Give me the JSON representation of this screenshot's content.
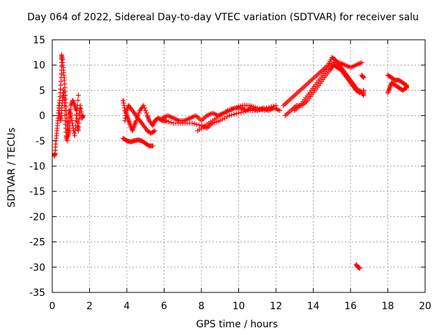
{
  "chart_data": {
    "type": "scatter",
    "title": "Day 064 of 2022, Sidereal Day-to-day VTEC variation (SDTVAR) for receiver salu",
    "xlabel": "GPS time / hours",
    "ylabel": "SDTVAR / TECUs",
    "xlim": [
      0,
      20
    ],
    "ylim": [
      -35,
      15
    ],
    "xticks": [
      0,
      2,
      4,
      6,
      8,
      10,
      12,
      14,
      16,
      18,
      20
    ],
    "yticks": [
      15,
      10,
      5,
      0,
      -5,
      -10,
      -15,
      -20,
      -25,
      -30,
      -35
    ],
    "grid": true,
    "marker": "+",
    "series": [
      {
        "name": "SDTVAR",
        "color": "#ff0000",
        "segments": [
          [
            [
              0.1,
              -8
            ],
            [
              0.15,
              -7.5
            ],
            [
              0.2,
              -5
            ],
            [
              0.25,
              -3
            ],
            [
              0.3,
              -1
            ],
            [
              0.35,
              1
            ],
            [
              0.4,
              3
            ],
            [
              0.45,
              6
            ],
            [
              0.5,
              9
            ],
            [
              0.5,
              12
            ],
            [
              0.55,
              11
            ],
            [
              0.6,
              9
            ],
            [
              0.65,
              7
            ],
            [
              0.7,
              4
            ],
            [
              0.75,
              1
            ],
            [
              0.8,
              -2
            ],
            [
              0.85,
              -4
            ],
            [
              0.9,
              -3
            ],
            [
              0.95,
              -1
            ],
            [
              1.0,
              2
            ],
            [
              1.1,
              3
            ],
            [
              1.2,
              2
            ],
            [
              1.3,
              1
            ],
            [
              1.35,
              -2
            ],
            [
              1.4,
              -3
            ],
            [
              1.45,
              0
            ],
            [
              1.5,
              2
            ],
            [
              1.6,
              -0.5
            ],
            [
              1.65,
              0
            ]
          ],
          [
            [
              0.35,
              2
            ],
            [
              0.4,
              0
            ],
            [
              0.45,
              -1
            ],
            [
              0.5,
              1
            ],
            [
              0.55,
              3
            ],
            [
              0.6,
              5
            ],
            [
              0.65,
              3
            ],
            [
              0.7,
              -1
            ],
            [
              0.75,
              -4
            ],
            [
              0.8,
              -5
            ],
            [
              0.85,
              -2
            ],
            [
              0.9,
              1
            ],
            [
              1.0,
              0
            ],
            [
              1.1,
              -2
            ],
            [
              1.2,
              -4
            ],
            [
              1.3,
              0
            ],
            [
              1.4,
              4
            ]
          ],
          [
            [
              3.8,
              3
            ],
            [
              3.9,
              1
            ],
            [
              4.0,
              0
            ],
            [
              4.1,
              -1
            ],
            [
              4.2,
              -2
            ],
            [
              4.3,
              -3
            ],
            [
              4.4,
              -2
            ],
            [
              4.5,
              -1
            ],
            [
              4.7,
              1
            ],
            [
              4.9,
              2
            ],
            [
              5.1,
              0
            ],
            [
              5.2,
              -1
            ],
            [
              5.4,
              -2
            ],
            [
              5.5,
              -1
            ],
            [
              5.7,
              -0.5
            ],
            [
              5.9,
              -1
            ],
            [
              6.1,
              -1
            ]
          ],
          [
            [
              3.9,
              -1
            ],
            [
              4.0,
              1
            ],
            [
              4.1,
              2
            ],
            [
              4.3,
              1
            ],
            [
              4.5,
              0
            ],
            [
              4.7,
              -1
            ],
            [
              4.9,
              -2
            ],
            [
              5.1,
              -3
            ],
            [
              5.3,
              -3.5
            ],
            [
              5.5,
              -3
            ]
          ],
          [
            [
              3.8,
              -4.5
            ],
            [
              4.0,
              -5
            ],
            [
              4.2,
              -5.2
            ],
            [
              4.4,
              -5
            ],
            [
              4.6,
              -4.8
            ],
            [
              4.8,
              -5
            ],
            [
              5.0,
              -5.5
            ],
            [
              5.2,
              -6
            ],
            [
              5.4,
              -6
            ]
          ],
          [
            [
              5.9,
              -0.5
            ],
            [
              6.2,
              0
            ],
            [
              6.5,
              -0.5
            ],
            [
              6.8,
              -1
            ],
            [
              7.1,
              -1
            ],
            [
              7.4,
              -0.5
            ],
            [
              7.7,
              0
            ],
            [
              8.0,
              -1
            ],
            [
              8.3,
              0
            ],
            [
              8.6,
              0.5
            ],
            [
              8.9,
              0
            ],
            [
              9.2,
              0.5
            ],
            [
              9.5,
              1
            ],
            [
              9.8,
              1.5
            ],
            [
              10.1,
              1.5
            ],
            [
              10.4,
              1
            ],
            [
              10.7,
              1.5
            ],
            [
              11.0,
              1
            ],
            [
              11.3,
              1.5
            ],
            [
              11.6,
              1
            ],
            [
              11.9,
              1.5
            ],
            [
              12.2,
              1
            ]
          ],
          [
            [
              6.0,
              -1
            ],
            [
              6.5,
              -1.5
            ],
            [
              7.0,
              -1.5
            ],
            [
              7.5,
              -1.5
            ],
            [
              8.0,
              -2
            ],
            [
              8.3,
              -2.5
            ],
            [
              8.6,
              -1.5
            ],
            [
              9.0,
              -1
            ],
            [
              9.5,
              0
            ],
            [
              10.0,
              0.5
            ],
            [
              10.5,
              1
            ],
            [
              11.0,
              1
            ],
            [
              11.5,
              1.5
            ],
            [
              12.0,
              2
            ]
          ],
          [
            [
              7.8,
              -3
            ],
            [
              8.2,
              -2
            ],
            [
              8.6,
              -1
            ],
            [
              9.0,
              0
            ],
            [
              9.4,
              1
            ],
            [
              9.8,
              1.5
            ],
            [
              10.2,
              2
            ],
            [
              10.6,
              2
            ],
            [
              11.0,
              1.5
            ],
            [
              11.4,
              1
            ],
            [
              11.8,
              1.5
            ]
          ],
          [
            [
              12.5,
              0
            ],
            [
              12.8,
              1
            ],
            [
              13.1,
              2
            ],
            [
              13.4,
              2
            ],
            [
              13.7,
              3
            ],
            [
              14.0,
              4.5
            ],
            [
              14.3,
              6
            ],
            [
              14.6,
              7.5
            ],
            [
              14.9,
              9
            ],
            [
              15.1,
              10
            ],
            [
              15.3,
              9.5
            ],
            [
              15.5,
              9
            ],
            [
              15.7,
              8
            ],
            [
              15.9,
              7
            ],
            [
              16.1,
              6
            ],
            [
              16.3,
              5
            ],
            [
              16.5,
              4.5
            ]
          ],
          [
            [
              12.4,
              2
            ],
            [
              12.7,
              3
            ],
            [
              13.0,
              4
            ],
            [
              13.3,
              5
            ],
            [
              13.6,
              6
            ],
            [
              13.9,
              7
            ],
            [
              14.2,
              8
            ],
            [
              14.5,
              9
            ],
            [
              14.8,
              10
            ],
            [
              15.0,
              11.5
            ],
            [
              15.2,
              11
            ],
            [
              15.4,
              10
            ],
            [
              15.6,
              9
            ],
            [
              15.8,
              8
            ],
            [
              16.0,
              7
            ],
            [
              16.2,
              6
            ],
            [
              16.4,
              5
            ]
          ],
          [
            [
              13.0,
              1
            ],
            [
              13.3,
              2
            ],
            [
              13.6,
              3.5
            ],
            [
              13.9,
              5
            ],
            [
              14.2,
              6.5
            ],
            [
              14.5,
              8
            ],
            [
              14.8,
              9.5
            ],
            [
              15.1,
              10.5
            ],
            [
              15.4,
              10.5
            ],
            [
              15.7,
              10
            ],
            [
              16.0,
              9.5
            ],
            [
              16.3,
              10
            ],
            [
              16.6,
              10.5
            ]
          ],
          [
            [
              16.6,
              8
            ],
            [
              16.7,
              7.5
            ]
          ],
          [
            [
              16.5,
              5
            ],
            [
              16.7,
              4
            ],
            [
              16.7,
              5
            ]
          ],
          [
            [
              16.3,
              -29.5
            ],
            [
              16.4,
              -30
            ],
            [
              16.5,
              -30.2
            ]
          ],
          [
            [
              18.0,
              8
            ],
            [
              18.2,
              7.5
            ],
            [
              18.4,
              7
            ],
            [
              18.6,
              7
            ],
            [
              18.8,
              6.5
            ],
            [
              19.0,
              6
            ],
            [
              19.0,
              5.5
            ]
          ],
          [
            [
              18.0,
              4.5
            ],
            [
              18.1,
              5.5
            ],
            [
              18.2,
              6.5
            ],
            [
              18.4,
              6
            ],
            [
              18.6,
              5.5
            ],
            [
              18.8,
              5
            ],
            [
              19.0,
              5.5
            ]
          ]
        ]
      }
    ]
  }
}
